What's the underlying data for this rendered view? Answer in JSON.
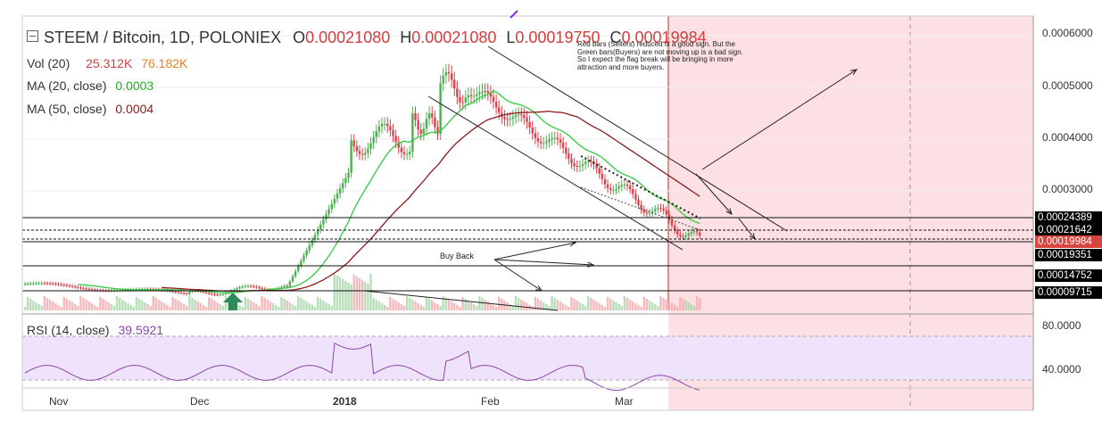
{
  "header": {
    "symbol": "STEEM / Bitcoin, 1D, POLONIEX",
    "open_label": "O",
    "open": "0.00021080",
    "high_label": "H",
    "high": "0.00021080",
    "low_label": "L",
    "low": "0.00019750",
    "close_label": "C",
    "close": "0.00019984"
  },
  "indicators": {
    "vol_label": "Vol (20)",
    "vol_value1": "25.312K",
    "vol_value2": "76.182K",
    "ma20_label": "MA (20, close)",
    "ma20_value": "0.0003",
    "ma50_label": "MA (50, close)",
    "ma50_value": "0.0004",
    "rsi_label": "RSI (14, close)",
    "rsi_value": "39.5921"
  },
  "annotations": {
    "note": "Red bars (Sellers) reduced is a good sign. But the Green bars(Buyers) are not moving up is a bad sign. So I expect the flag break will be bringing in more attraction and more buyers.",
    "buy_back": "Buy Back"
  },
  "price_labels": {
    "l1": "0.00024389",
    "l2": "0.00021642",
    "l3": "0.00019984",
    "l4": "0.00019351",
    "l5": "0.00014752",
    "l6": "0.00009715"
  },
  "colors": {
    "up": "#4caf50",
    "down": "#e0414a",
    "ma20": "#2ecc40",
    "ma50": "#8b1a1a",
    "rsi": "#8e44ad",
    "forecast_zone": "#fde0e3"
  },
  "chart_data": {
    "type": "candlestick",
    "pair": "STEEM / Bitcoin",
    "interval": "1D",
    "exchange": "POLONIEX",
    "y_axis_ticks": [
      "0.0006000",
      "0.0005000",
      "0.0004000",
      "0.0003000"
    ],
    "rsi_axis_ticks": [
      "80.0000",
      "40.0000"
    ],
    "x_axis_ticks": [
      "Nov",
      "Dec",
      "2018",
      "Feb",
      "Mar"
    ],
    "rsi_range": [
      30,
      70
    ],
    "last_ohlc": {
      "open": 0.0002108,
      "high": 0.0002108,
      "low": 0.0001975,
      "close": 0.00019984
    },
    "horizontal_levels": [
      0.00024389,
      0.00021642,
      0.00019351,
      0.00014752,
      9.715e-05
    ],
    "series": [
      {
        "name": "MA (20, close)",
        "last": 0.0003
      },
      {
        "name": "MA (50, close)",
        "last": 0.0004
      },
      {
        "name": "RSI (14, close)",
        "last": 39.5921
      }
    ]
  }
}
